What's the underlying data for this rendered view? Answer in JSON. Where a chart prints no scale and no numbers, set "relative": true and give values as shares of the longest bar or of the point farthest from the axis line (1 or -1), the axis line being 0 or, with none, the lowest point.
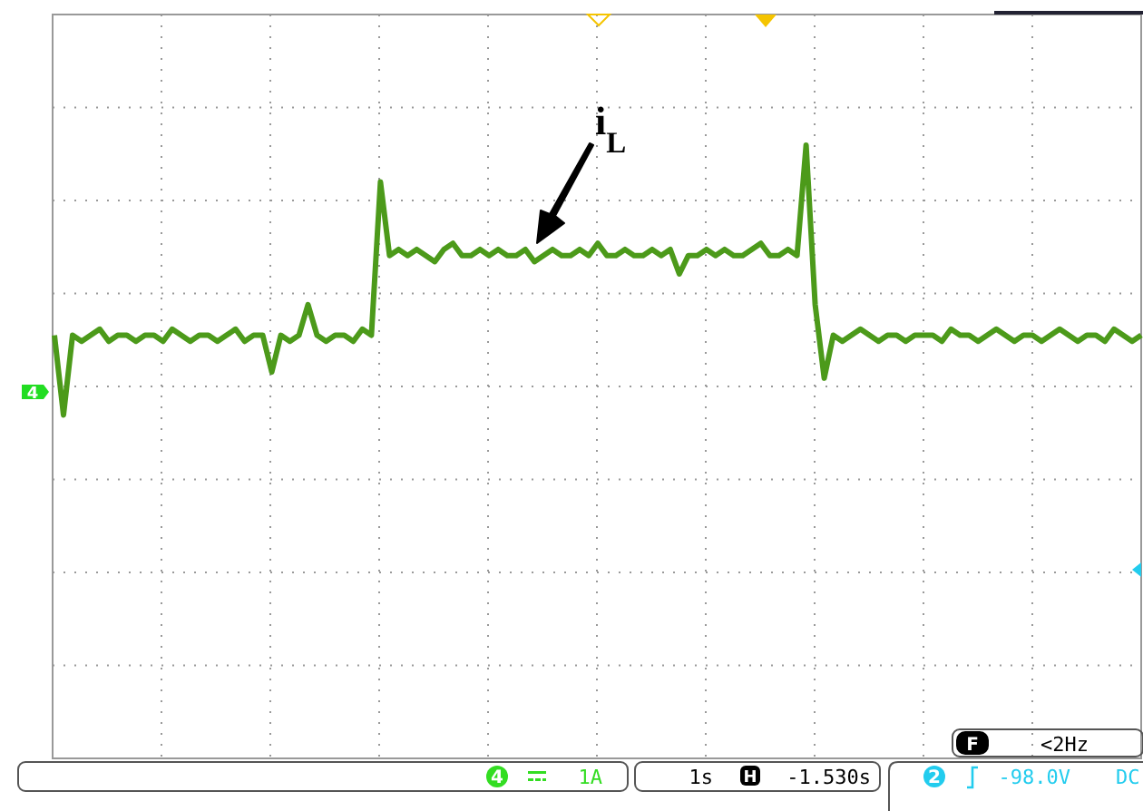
{
  "chart_data": {
    "type": "line",
    "relative": true,
    "grid": true,
    "categories": [
      null,
      null,
      null,
      null,
      null,
      null,
      null,
      null,
      null,
      null,
      null,
      null,
      null,
      null,
      null,
      null,
      null,
      null,
      null,
      null,
      null,
      null,
      null,
      null,
      null,
      null,
      null,
      null,
      null,
      null,
      null,
      null,
      null,
      null,
      null,
      null,
      null,
      null,
      null,
      null,
      null,
      null,
      null,
      null,
      null,
      null,
      null,
      null,
      null,
      null,
      null,
      null,
      null,
      null,
      null,
      null,
      null,
      null,
      null,
      null,
      null,
      null,
      null,
      null,
      null,
      null,
      null,
      null,
      null,
      null,
      null,
      null,
      null,
      null,
      null,
      null,
      null,
      null,
      null,
      null,
      null,
      null,
      null,
      null,
      null,
      null,
      null,
      null,
      null,
      null,
      null,
      null,
      null,
      null,
      null,
      null,
      null,
      null,
      null,
      null,
      null,
      null,
      null,
      null,
      null,
      null,
      null,
      null,
      null,
      null,
      null,
      null,
      null,
      null,
      null,
      null,
      null,
      null,
      null,
      null,
      null
    ],
    "series": [
      {
        "color": "#4c9a1a",
        "values": [
          0.69,
          0.56,
          0.69,
          0.68,
          0.69,
          0.7,
          0.68,
          0.69,
          0.69,
          0.68,
          0.69,
          0.69,
          0.68,
          0.7,
          0.69,
          0.68,
          0.69,
          0.69,
          0.68,
          0.69,
          0.7,
          0.68,
          0.69,
          0.69,
          0.63,
          0.69,
          0.68,
          0.69,
          0.74,
          0.69,
          0.68,
          0.69,
          0.69,
          0.68,
          0.7,
          0.69,
          0.94,
          0.82,
          0.83,
          0.82,
          0.83,
          0.82,
          0.81,
          0.83,
          0.84,
          0.82,
          0.82,
          0.83,
          0.82,
          0.83,
          0.82,
          0.82,
          0.83,
          0.81,
          0.82,
          0.83,
          0.82,
          0.82,
          0.83,
          0.82,
          0.84,
          0.82,
          0.82,
          0.83,
          0.82,
          0.82,
          0.83,
          0.82,
          0.83,
          0.79,
          0.82,
          0.82,
          0.83,
          0.82,
          0.83,
          0.82,
          0.82,
          0.83,
          0.84,
          0.82,
          0.82,
          0.83,
          0.82,
          1,
          0.74,
          0.62,
          0.69,
          0.68,
          0.69,
          0.7,
          0.69,
          0.68,
          0.69,
          0.69,
          0.68,
          0.69,
          0.69,
          0.69,
          0.68,
          0.7,
          0.69,
          0.69,
          0.68,
          0.69,
          0.7,
          0.69,
          0.68,
          0.69,
          0.69,
          0.68,
          0.69,
          0.7,
          0.69,
          0.68,
          0.69,
          0.69,
          0.68,
          0.7,
          0.69,
          0.68,
          0.69
        ]
      }
    ],
    "annotations": [
      "i$_{L}$",
      "4",
      "4",
      "1A",
      "1s",
      "H",
      "-1.530s",
      "2",
      "-98.0V",
      "DC",
      "F",
      "<2Hz"
    ]
  }
}
